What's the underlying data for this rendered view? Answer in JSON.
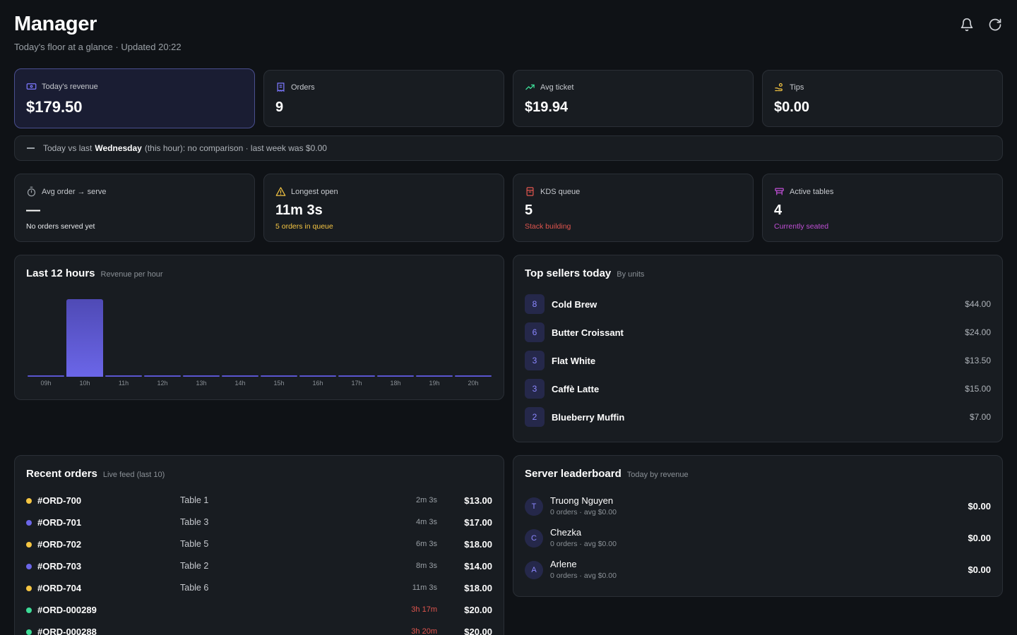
{
  "header": {
    "title": "Manager",
    "subtitle": "Today's floor at a glance · Updated 20:22"
  },
  "stats_top": [
    {
      "label": "Today's revenue",
      "value": "$179.50",
      "icon": "cash-icon",
      "color": "#7c78ff"
    },
    {
      "label": "Orders",
      "value": "9",
      "icon": "receipt-icon",
      "color": "#7c78ff"
    },
    {
      "label": "Avg ticket",
      "value": "$19.94",
      "icon": "trending-up-icon",
      "color": "#3ddc97"
    },
    {
      "label": "Tips",
      "value": "$0.00",
      "icon": "hand-coin-icon",
      "color": "#f5c542"
    }
  ],
  "comparison": {
    "prefix": "Today vs last",
    "day": "Wednesday",
    "suffix": "(this hour): no comparison · last week was $0.00"
  },
  "stats_ops": [
    {
      "label": "Avg order → serve",
      "value": "—",
      "note": "No orders served yet",
      "icon": "stopwatch-icon",
      "color": "#9aa0a6",
      "note_color": "#e8eaed"
    },
    {
      "label": "Longest open",
      "value": "11m 3s",
      "note": "5 orders in queue",
      "icon": "warning-icon",
      "color": "#f5c542",
      "note_color": "#f5c542"
    },
    {
      "label": "KDS queue",
      "value": "5",
      "note": "Stack building",
      "icon": "kds-icon",
      "color": "#e0554e",
      "note_color": "#e0554e"
    },
    {
      "label": "Active tables",
      "value": "4",
      "note": "Currently seated",
      "icon": "table-icon",
      "color": "#c04fd6",
      "note_color": "#c04fd6"
    }
  ],
  "revenue_chart": {
    "title": "Last 12 hours",
    "subtitle": "Revenue per hour"
  },
  "chart_data": {
    "type": "bar",
    "title": "Last 12 hours",
    "subtitle": "Revenue per hour",
    "categories": [
      "09h",
      "10h",
      "11h",
      "12h",
      "13h",
      "14h",
      "15h",
      "16h",
      "17h",
      "18h",
      "19h",
      "20h"
    ],
    "values": [
      0,
      179.5,
      0,
      0,
      0,
      0,
      0,
      0,
      0,
      0,
      0,
      0
    ],
    "grid": false,
    "bar_color": "#6b66e8"
  },
  "top_sellers": {
    "title": "Top sellers today",
    "subtitle": "By units",
    "items": [
      {
        "units": "8",
        "name": "Cold Brew",
        "amount": "$44.00"
      },
      {
        "units": "6",
        "name": "Butter Croissant",
        "amount": "$24.00"
      },
      {
        "units": "3",
        "name": "Flat White",
        "amount": "$13.50"
      },
      {
        "units": "3",
        "name": "Caffè Latte",
        "amount": "$15.00"
      },
      {
        "units": "2",
        "name": "Blueberry Muffin",
        "amount": "$7.00"
      }
    ]
  },
  "recent_orders": {
    "title": "Recent orders",
    "subtitle": "Live feed (last 10)",
    "items": [
      {
        "id": "#ORD-700",
        "table": "Table 1",
        "age": "2m 3s",
        "amount": "$13.00",
        "status_color": "#f5c542",
        "late": false
      },
      {
        "id": "#ORD-701",
        "table": "Table 3",
        "age": "4m 3s",
        "amount": "$17.00",
        "status_color": "#6b66e8",
        "late": false
      },
      {
        "id": "#ORD-702",
        "table": "Table 5",
        "age": "6m 3s",
        "amount": "$18.00",
        "status_color": "#f5c542",
        "late": false
      },
      {
        "id": "#ORD-703",
        "table": "Table 2",
        "age": "8m 3s",
        "amount": "$14.00",
        "status_color": "#6b66e8",
        "late": false
      },
      {
        "id": "#ORD-704",
        "table": "Table 6",
        "age": "11m 3s",
        "amount": "$18.00",
        "status_color": "#f5c542",
        "late": false
      },
      {
        "id": "#ORD-000289",
        "table": "",
        "age": "3h 17m",
        "amount": "$20.00",
        "status_color": "#3ddc97",
        "late": true
      },
      {
        "id": "#ORD-000288",
        "table": "",
        "age": "3h 20m",
        "amount": "$20.00",
        "status_color": "#3ddc97",
        "late": true
      }
    ]
  },
  "leaderboard": {
    "title": "Server leaderboard",
    "subtitle": "Today by revenue",
    "items": [
      {
        "initial": "T",
        "name": "Truong Nguyen",
        "sub": "0 orders · avg $0.00",
        "amount": "$0.00"
      },
      {
        "initial": "C",
        "name": "Chezka",
        "sub": "0 orders · avg $0.00",
        "amount": "$0.00"
      },
      {
        "initial": "A",
        "name": "Arlene",
        "sub": "0 orders · avg $0.00",
        "amount": "$0.00"
      }
    ]
  }
}
